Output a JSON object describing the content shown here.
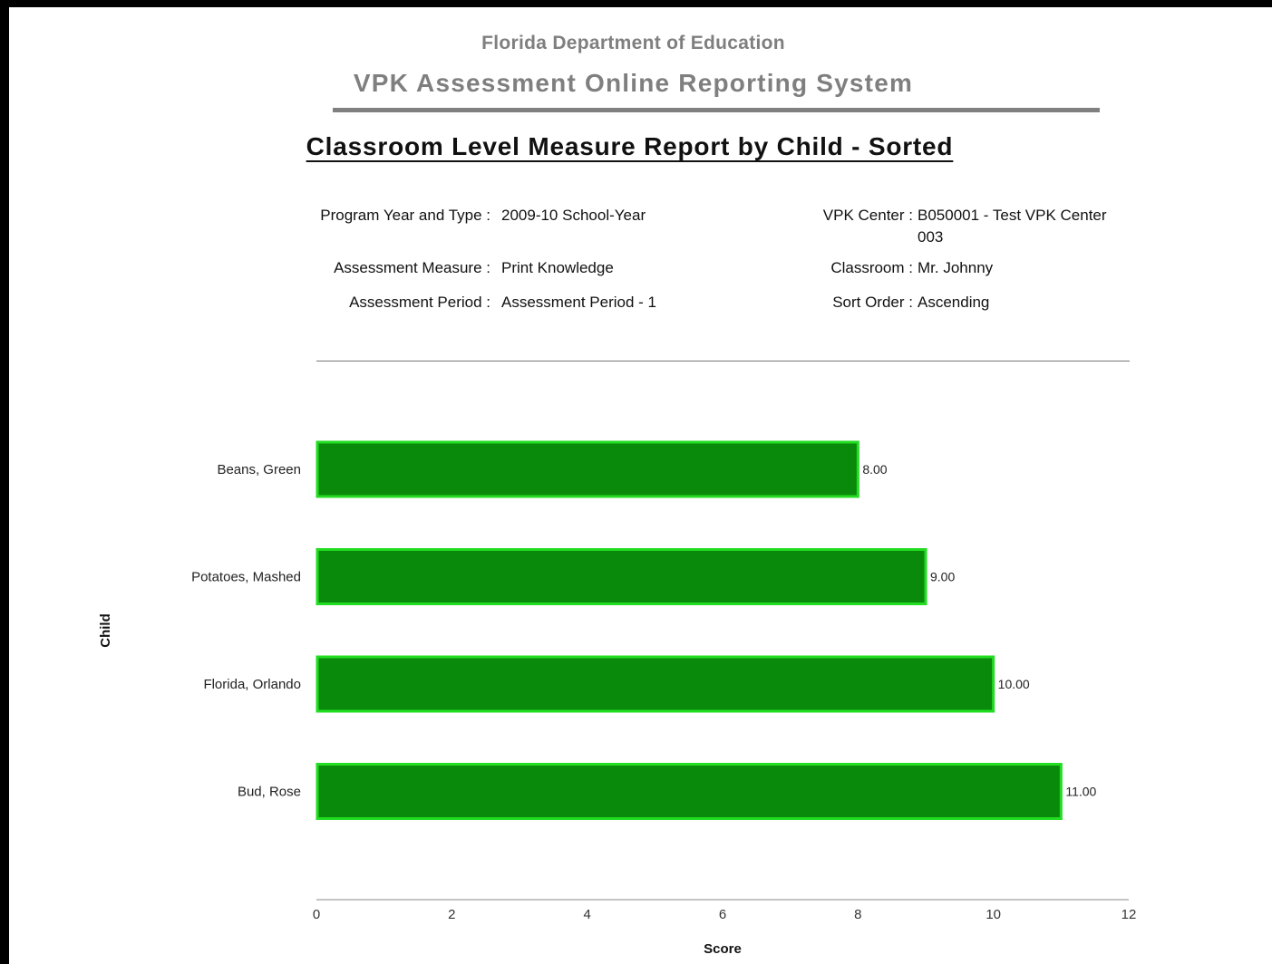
{
  "header": {
    "department": "Florida Department of Education",
    "system": "VPK Assessment Online Reporting System",
    "report_title": "Classroom Level Measure Report by Child - Sorted"
  },
  "meta": {
    "program_year_label": "Program Year and Type :",
    "program_year_value": "2009-10 School-Year",
    "measure_label": "Assessment Measure :",
    "measure_value": "Print Knowledge",
    "period_label": "Assessment Period :",
    "period_value": "Assessment Period - 1",
    "center_label": "VPK Center :",
    "center_value_line1": "B050001 - Test VPK Center",
    "center_value_line2": "003",
    "classroom_label": "Classroom :",
    "classroom_value": "Mr. Johnny",
    "sort_label": "Sort Order :",
    "sort_value": "Ascending"
  },
  "chart_data": {
    "type": "bar",
    "orientation": "horizontal",
    "categories": [
      "Beans, Green",
      "Potatoes, Mashed",
      "Florida, Orlando",
      "Bud, Rose"
    ],
    "values": [
      8,
      9,
      10,
      11
    ],
    "value_labels": [
      "8.00",
      "9.00",
      "10.00",
      "11.00"
    ],
    "xlabel": "Score",
    "ylabel": "Child",
    "xlim": [
      0,
      12
    ],
    "xticks": [
      "0",
      "2",
      "4",
      "6",
      "8",
      "10",
      "12"
    ],
    "grid": false,
    "bar_color": "#0a8a0a",
    "bar_edge_color": "#22dd22"
  }
}
